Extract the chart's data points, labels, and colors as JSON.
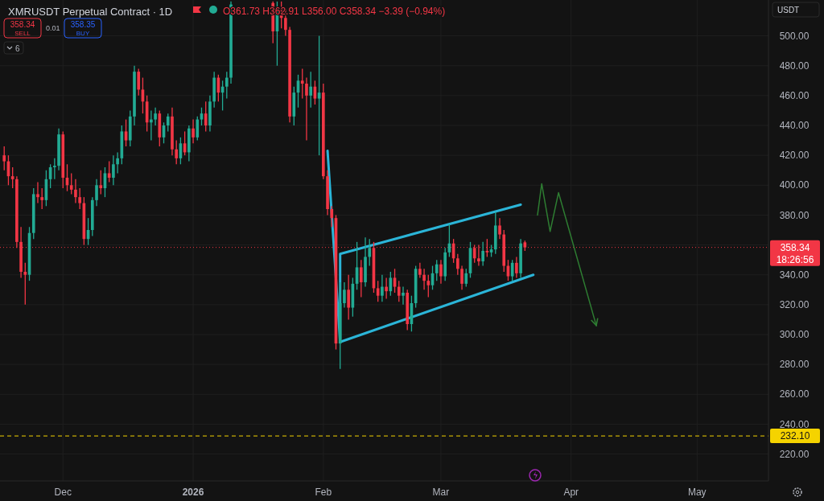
{
  "chart_data": {
    "type": "candlestick",
    "title": "XMRUSDT Perpetual Contract · 1D",
    "subtitle": "O361.73 H362.91 L356.00 C358.34 −3.39 (−0.94%)",
    "annotations": [
      "358.34",
      "SELL",
      "0.01",
      "358.35",
      "BUY",
      "6",
      "USDT",
      "18:26:56"
    ],
    "colors": [
      "#f23645",
      "#f23645",
      "#f23645",
      "#f23645",
      "#f23645",
      "#f23645",
      "#22ab94",
      "#22ab94",
      "#f23645",
      "#f23645",
      "#22ab94",
      "#22ab94",
      "#22ab94",
      "#22ab94",
      "#f23645",
      "#f23645",
      "#f23645",
      "#f23645",
      "#f23645",
      "#f23645",
      "#22ab94",
      "#22ab94",
      "#22ab94",
      "#f23645",
      "#22ab94",
      "#f23645",
      "#22ab94",
      "#22ab94",
      "#22ab94",
      "#f23645",
      "#22ab94",
      "#22ab94",
      "#f23645",
      "#f23645",
      "#f23645",
      "#22ab94",
      "#22ab94",
      "#f23645",
      "#22ab94",
      "#22ab94",
      "#f23645",
      "#f23645",
      "#22ab94",
      "#f23645",
      "#22ab94",
      "#f23645",
      "#22ab94",
      "#22ab94",
      "#f23645",
      "#22ab94",
      "#22ab94",
      "#f23645",
      "#22ab94",
      "#22ab94",
      "#22ab94",
      "#f23645",
      "#22ab94",
      "#f23645",
      "#f23645",
      "#f23645",
      "#22ab94",
      "#22ab94",
      "#f23645",
      "#f23645",
      "#22ab94",
      "#f23645",
      "#22ab94",
      "#f23645",
      "#f23645",
      "#f23645",
      "#f23645",
      "#22ab94",
      "#22ab94",
      "#f23645",
      "#22ab94",
      "#22ab94",
      "#f23645",
      "#22ab94",
      "#22ab94",
      "#f23645",
      "#f23645",
      "#22ab94",
      "#f23645",
      "#22ab94",
      "#f23645",
      "#f23645",
      "#22ab94",
      "#f23645",
      "#22ab94",
      "#22ab94",
      "#f23645",
      "#f23645",
      "#f23645",
      "#22ab94",
      "#22ab94",
      "#f23645",
      "#22ab94",
      "#22ab94",
      "#f23645",
      "#f23645",
      "#f23645",
      "#22ab94",
      "#22ab94",
      "#f23645",
      "#f23645",
      "#22ab94",
      "#f23645",
      "#22ab94",
      "#22ab94",
      "#f23645",
      "#f23645",
      "#f23645",
      "#22ab94",
      "#f23645",
      "#22ab94",
      "#f23645"
    ],
    "x": [
      "2025-11-17",
      "2025-11-18",
      "2025-11-19",
      "2025-11-20",
      "2025-11-21",
      "2025-11-22",
      "2025-11-23",
      "2025-11-24",
      "2025-11-25",
      "2025-11-26",
      "2025-11-27",
      "2025-11-28",
      "2025-11-29",
      "2025-11-30",
      "2025-12-01",
      "2025-12-02",
      "2025-12-03",
      "2025-12-04",
      "2025-12-05",
      "2025-12-06",
      "2025-12-07",
      "2025-12-08",
      "2025-12-09",
      "2025-12-10",
      "2025-12-11",
      "2025-12-12",
      "2025-12-13",
      "2025-12-14",
      "2025-12-15",
      "2025-12-16",
      "2025-12-17",
      "2025-12-18",
      "2025-12-19",
      "2025-12-20",
      "2025-12-21",
      "2025-12-22",
      "2025-12-23",
      "2025-12-24",
      "2025-12-25",
      "2025-12-26",
      "2025-12-27",
      "2025-12-28",
      "2025-12-29",
      "2025-12-30",
      "2025-12-31",
      "2026-01-01",
      "2026-01-02",
      "2026-01-03",
      "2026-01-04",
      "2026-01-05",
      "2026-01-06",
      "2026-01-07",
      "2026-01-08",
      "2026-01-09",
      "2026-01-10",
      "2026-01-20",
      "2026-01-21",
      "2026-01-22",
      "2026-01-23",
      "2026-01-24",
      "2026-01-25",
      "2026-01-26",
      "2026-01-27",
      "2026-01-28",
      "2026-01-29",
      "2026-01-30",
      "2026-01-31",
      "2026-02-01",
      "2026-02-02",
      "2026-02-03",
      "2026-02-04",
      "2026-02-05",
      "2026-02-06",
      "2026-02-07",
      "2026-02-08",
      "2026-02-09",
      "2026-02-10",
      "2026-02-11",
      "2026-02-12",
      "2026-02-13",
      "2026-02-14",
      "2026-02-15",
      "2026-02-16",
      "2026-02-17",
      "2026-02-18",
      "2026-02-19",
      "2026-02-20",
      "2026-02-21",
      "2026-02-22",
      "2026-02-23",
      "2026-02-24",
      "2026-02-25",
      "2026-02-26",
      "2026-02-27",
      "2026-02-28",
      "2026-03-01",
      "2026-03-02",
      "2026-03-03",
      "2026-03-04",
      "2026-03-05",
      "2026-03-06",
      "2026-03-07",
      "2026-03-08",
      "2026-03-09",
      "2026-03-10",
      "2026-03-11",
      "2026-03-12",
      "2026-03-13",
      "2026-03-14",
      "2026-03-15",
      "2026-03-16",
      "2026-03-17",
      "2026-03-18",
      "2026-03-19",
      "2026-03-20",
      "2026-03-21"
    ],
    "ohlc": [
      [
        420,
        426,
        410,
        416
      ],
      [
        416,
        420,
        400,
        406
      ],
      [
        406,
        412,
        398,
        404
      ],
      [
        404,
        406,
        358,
        362
      ],
      [
        362,
        372,
        338,
        342
      ],
      [
        342,
        348,
        320,
        340
      ],
      [
        340,
        372,
        336,
        368
      ],
      [
        368,
        398,
        364,
        394
      ],
      [
        394,
        402,
        388,
        392
      ],
      [
        392,
        398,
        384,
        390
      ],
      [
        390,
        410,
        386,
        404
      ],
      [
        404,
        414,
        398,
        412
      ],
      [
        412,
        418,
        404,
        413
      ],
      [
        413,
        438,
        410,
        434
      ],
      [
        434,
        436,
        398,
        405
      ],
      [
        405,
        414,
        396,
        400
      ],
      [
        400,
        408,
        394,
        397
      ],
      [
        397,
        404,
        388,
        392
      ],
      [
        392,
        398,
        384,
        388
      ],
      [
        388,
        392,
        360,
        364
      ],
      [
        364,
        378,
        360,
        370
      ],
      [
        370,
        392,
        366,
        390
      ],
      [
        390,
        404,
        386,
        400
      ],
      [
        400,
        410,
        394,
        398
      ],
      [
        398,
        412,
        392,
        408
      ],
      [
        408,
        416,
        402,
        405
      ],
      [
        405,
        420,
        400,
        414
      ],
      [
        414,
        422,
        408,
        418
      ],
      [
        418,
        440,
        414,
        436
      ],
      [
        436,
        444,
        426,
        430
      ],
      [
        430,
        450,
        426,
        446
      ],
      [
        446,
        480,
        440,
        476
      ],
      [
        476,
        478,
        460,
        464
      ],
      [
        464,
        472,
        448,
        456
      ],
      [
        456,
        460,
        436,
        442
      ],
      [
        442,
        450,
        430,
        444
      ],
      [
        444,
        452,
        440,
        448
      ],
      [
        448,
        450,
        426,
        432
      ],
      [
        432,
        442,
        428,
        440
      ],
      [
        440,
        448,
        436,
        446
      ],
      [
        446,
        452,
        420,
        424
      ],
      [
        424,
        430,
        414,
        418
      ],
      [
        418,
        432,
        414,
        428
      ],
      [
        428,
        436,
        420,
        422
      ],
      [
        422,
        440,
        416,
        438
      ],
      [
        438,
        444,
        428,
        432
      ],
      [
        432,
        446,
        430,
        444
      ],
      [
        444,
        452,
        440,
        448
      ],
      [
        448,
        456,
        436,
        440
      ],
      [
        440,
        460,
        436,
        456
      ],
      [
        456,
        476,
        452,
        472
      ],
      [
        472,
        474,
        456,
        462
      ],
      [
        462,
        470,
        450,
        466
      ],
      [
        466,
        476,
        458,
        472
      ],
      [
        472,
        523,
        468,
        521
      ],
      [
        522,
        523,
        495,
        503
      ],
      [
        503,
        523,
        480,
        518
      ],
      [
        518,
        523,
        505,
        512
      ],
      [
        512,
        518,
        500,
        504
      ],
      [
        504,
        506,
        442,
        446
      ],
      [
        446,
        466,
        440,
        462
      ],
      [
        462,
        474,
        452,
        470
      ],
      [
        470,
        478,
        458,
        468
      ],
      [
        468,
        472,
        430,
        460
      ],
      [
        460,
        476,
        452,
        466
      ],
      [
        466,
        470,
        454,
        458
      ],
      [
        458,
        500,
        420,
        462
      ],
      [
        462,
        468,
        404,
        406
      ],
      [
        406,
        410,
        380,
        384
      ],
      [
        384,
        386,
        372,
        378
      ],
      [
        378,
        380,
        290,
        294
      ],
      [
        294,
        335,
        277,
        321
      ],
      [
        321,
        335,
        318,
        330
      ],
      [
        330,
        340,
        310,
        318
      ],
      [
        318,
        338,
        312,
        334
      ],
      [
        334,
        362,
        330,
        345
      ],
      [
        345,
        350,
        325,
        335
      ],
      [
        335,
        365,
        332,
        352
      ],
      [
        352,
        364,
        346,
        358
      ],
      [
        358,
        362,
        328,
        331
      ],
      [
        331,
        336,
        322,
        326
      ],
      [
        326,
        340,
        322,
        332
      ],
      [
        332,
        338,
        324,
        329
      ],
      [
        329,
        342,
        326,
        338
      ],
      [
        338,
        344,
        328,
        332
      ],
      [
        332,
        336,
        322,
        326
      ],
      [
        326,
        332,
        320,
        328
      ],
      [
        328,
        330,
        303,
        307
      ],
      [
        307,
        326,
        302,
        321
      ],
      [
        321,
        346,
        318,
        344
      ],
      [
        344,
        348,
        338,
        340
      ],
      [
        340,
        344,
        330,
        336
      ],
      [
        336,
        340,
        325,
        333
      ],
      [
        333,
        346,
        330,
        341
      ],
      [
        341,
        350,
        336,
        347
      ],
      [
        347,
        350,
        334,
        339
      ],
      [
        339,
        358,
        336,
        355
      ],
      [
        355,
        374,
        352,
        361
      ],
      [
        361,
        364,
        348,
        351
      ],
      [
        351,
        354,
        340,
        344
      ],
      [
        344,
        346,
        330,
        334
      ],
      [
        334,
        344,
        332,
        341
      ],
      [
        341,
        362,
        338,
        358
      ],
      [
        358,
        360,
        348,
        351
      ],
      [
        351,
        360,
        346,
        349
      ],
      [
        349,
        362,
        346,
        356
      ],
      [
        356,
        364,
        352,
        355
      ],
      [
        355,
        360,
        352,
        357
      ],
      [
        357,
        382,
        354,
        373
      ],
      [
        373,
        378,
        364,
        367
      ],
      [
        367,
        370,
        342,
        346
      ],
      [
        346,
        350,
        336,
        339
      ],
      [
        339,
        350,
        336,
        348
      ],
      [
        348,
        352,
        338,
        341
      ],
      [
        341,
        364,
        338,
        361
      ],
      [
        361.73,
        362.91,
        356.0,
        358.34
      ]
    ],
    "series": [
      {
        "type": "line",
        "color": "#2bb5d8",
        "x": [
          "2026-02-02",
          "2026-02-05",
          "2026-03-23"
        ],
        "values": [
          423,
          295,
          340
        ]
      },
      {
        "type": "line",
        "color": "#2bb5d8",
        "x": [
          "2026-02-05",
          "2026-02-05",
          "2026-03-20"
        ],
        "values": [
          295,
          354,
          387
        ]
      },
      {
        "type": "line",
        "color": "#2e7d32",
        "x": [
          "2026-03-24",
          "2026-03-25",
          "2026-03-27",
          "2026-03-29",
          "2026-04-07"
        ],
        "values": [
          380,
          401,
          369,
          395,
          306
        ]
      }
    ],
    "marker": "none",
    "xlim": [
      "2025-11-16",
      "2026-05-18"
    ],
    "xticks": [
      {
        "value": "2025-12-01",
        "label": "Dec"
      },
      {
        "value": "2026-01-01",
        "label": "2026"
      },
      {
        "value": "2026-02-01",
        "label": "Feb"
      },
      {
        "value": "2026-03-01",
        "label": "Mar"
      },
      {
        "value": "2026-04-01",
        "label": "Apr"
      },
      {
        "value": "2026-05-01",
        "label": "May"
      }
    ],
    "ylim": [
      202,
      524
    ],
    "yticks": [
      {
        "value": 220,
        "label": "220.00"
      },
      {
        "value": 240,
        "label": "240.00"
      },
      {
        "value": 260,
        "label": "260.00"
      },
      {
        "value": 280,
        "label": "280.00"
      },
      {
        "value": 300,
        "label": "300.00"
      },
      {
        "value": 320,
        "label": "320.00"
      },
      {
        "value": 340,
        "label": "340.00"
      },
      {
        "value": 360,
        "label": null
      },
      {
        "value": 380,
        "label": "380.00"
      },
      {
        "value": 400,
        "label": "400.00"
      },
      {
        "value": 420,
        "label": "420.00"
      },
      {
        "value": 440,
        "label": "440.00"
      },
      {
        "value": 460,
        "label": "460.00"
      },
      {
        "value": 480,
        "label": "480.00"
      },
      {
        "value": 500,
        "label": "500.00"
      }
    ],
    "grid": true,
    "ref_lines": [
      {
        "axis": "y",
        "value": 358.34,
        "label": "358.34",
        "color": "#f23645",
        "line_style": "dotted"
      },
      {
        "axis": "y",
        "value": 232.1,
        "label": "232.10",
        "color": "#f5d300",
        "line_style": "dashed"
      }
    ]
  }
}
